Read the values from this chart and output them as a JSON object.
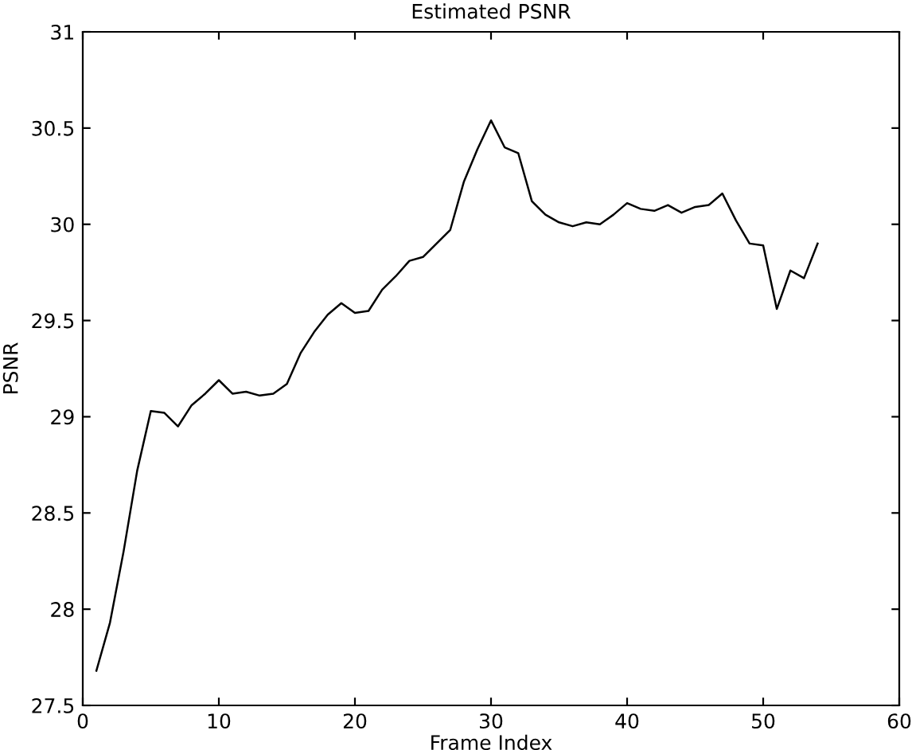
{
  "chart_data": {
    "type": "line",
    "title": "Estimated PSNR",
    "xlabel": "Frame Index",
    "ylabel": "PSNR",
    "x": [
      1,
      2,
      3,
      4,
      5,
      6,
      7,
      8,
      9,
      10,
      11,
      12,
      13,
      14,
      15,
      16,
      17,
      18,
      19,
      20,
      21,
      22,
      23,
      24,
      25,
      26,
      27,
      28,
      29,
      30,
      31,
      32,
      33,
      34,
      35,
      36,
      37,
      38,
      39,
      40,
      41,
      42,
      43,
      44,
      45,
      46,
      47,
      48,
      49,
      50,
      51,
      52,
      53,
      54
    ],
    "series": [
      {
        "color": "#000000",
        "values": [
          27.68,
          27.93,
          28.3,
          28.72,
          29.03,
          29.02,
          28.95,
          29.06,
          29.12,
          29.19,
          29.12,
          29.13,
          29.11,
          29.12,
          29.17,
          29.33,
          29.44,
          29.53,
          29.59,
          29.54,
          29.55,
          29.66,
          29.73,
          29.81,
          29.83,
          29.9,
          29.97,
          30.22,
          30.39,
          30.54,
          30.4,
          30.37,
          30.12,
          30.05,
          30.01,
          29.99,
          30.01,
          30.0,
          30.05,
          30.11,
          30.08,
          30.07,
          30.1,
          30.06,
          30.09,
          30.1,
          30.16,
          30.02,
          29.9,
          29.89,
          29.56,
          29.76,
          29.72,
          29.9
        ]
      }
    ],
    "xlim": [
      0,
      60
    ],
    "xticks": [
      0,
      10,
      20,
      30,
      40,
      50,
      60
    ],
    "ylim": [
      27.5,
      31
    ],
    "yticks": [
      27.5,
      28,
      28.5,
      29,
      29.5,
      30,
      30.5,
      31
    ],
    "grid": false,
    "legend": false
  }
}
